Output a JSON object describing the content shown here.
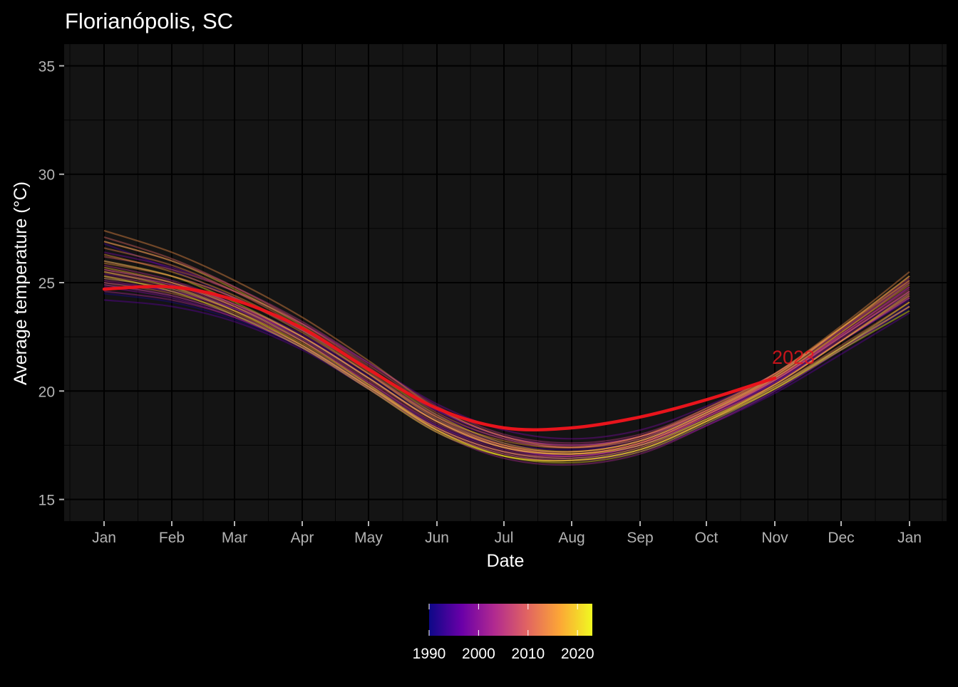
{
  "chart_data": {
    "type": "line",
    "title": "Florianópolis, SC",
    "xlabel": "Date",
    "ylabel": "Average temperature (°C)",
    "x_tick_labels": [
      "Jan",
      "Feb",
      "Mar",
      "Apr",
      "May",
      "Jun",
      "Jul",
      "Aug",
      "Sep",
      "Oct",
      "Nov",
      "Dec",
      "Jan"
    ],
    "y_ticks": [
      15,
      20,
      25,
      30,
      35
    ],
    "ylim": [
      14,
      36
    ],
    "grid": true,
    "legend": {
      "type": "colorbar",
      "placement": "bottom",
      "ticks": [
        1990,
        2000,
        2010,
        2020
      ],
      "range": [
        1990,
        2023
      ],
      "palette": [
        "#0d0887",
        "#6a00a8",
        "#b12a90",
        "#e16462",
        "#fca636",
        "#f0f921"
      ]
    },
    "highlight": {
      "name": "2023",
      "label": "2023",
      "color": "#e8141c",
      "x": [
        "Jan",
        "Feb",
        "Mar",
        "Apr",
        "May",
        "Jun",
        "Jul",
        "Aug",
        "Sep",
        "Oct",
        "Nov"
      ],
      "values": [
        24.7,
        24.8,
        24.2,
        22.9,
        21.0,
        19.2,
        18.3,
        18.3,
        18.8,
        19.6,
        20.6
      ]
    },
    "x_monthly": [
      "Jan",
      "Feb",
      "Mar",
      "Apr",
      "May",
      "Jun",
      "Jul",
      "Aug",
      "Sep",
      "Oct",
      "Nov",
      "Dec",
      "Jan"
    ],
    "series": [
      {
        "year": 1991,
        "values": [
          24.5,
          24.1,
          23.3,
          22.0,
          20.2,
          18.3,
          17.2,
          16.9,
          17.3,
          18.5,
          20.0,
          21.9,
          23.8
        ]
      },
      {
        "year": 1992,
        "values": [
          25.2,
          24.7,
          23.8,
          22.4,
          20.6,
          18.7,
          17.5,
          17.2,
          17.7,
          18.9,
          20.4,
          22.3,
          24.3
        ]
      },
      {
        "year": 1993,
        "values": [
          24.9,
          24.4,
          23.5,
          22.1,
          20.3,
          18.4,
          17.4,
          17.0,
          17.5,
          18.7,
          20.2,
          22.0,
          24.0
        ]
      },
      {
        "year": 1994,
        "values": [
          26.8,
          25.6,
          24.3,
          22.8,
          21.0,
          19.1,
          17.9,
          17.5,
          17.9,
          19.0,
          20.5,
          22.5,
          24.6
        ]
      },
      {
        "year": 1995,
        "values": [
          25.0,
          24.6,
          23.8,
          22.5,
          20.7,
          18.8,
          17.6,
          17.3,
          17.7,
          18.9,
          20.4,
          22.3,
          24.2
        ]
      },
      {
        "year": 1996,
        "values": [
          24.2,
          23.9,
          23.2,
          21.9,
          20.1,
          18.2,
          17.1,
          16.8,
          17.2,
          18.4,
          19.9,
          21.7,
          23.6
        ]
      },
      {
        "year": 1997,
        "values": [
          25.6,
          25.0,
          24.0,
          22.6,
          20.8,
          18.9,
          17.8,
          17.4,
          17.8,
          19.0,
          20.5,
          22.5,
          24.5
        ]
      },
      {
        "year": 1998,
        "values": [
          26.4,
          25.7,
          24.6,
          23.1,
          21.3,
          19.4,
          18.2,
          17.8,
          18.2,
          19.3,
          20.8,
          22.8,
          25.0
        ]
      },
      {
        "year": 1999,
        "values": [
          24.8,
          24.3,
          23.4,
          22.0,
          20.2,
          18.3,
          17.2,
          16.9,
          17.4,
          18.6,
          20.1,
          22.0,
          23.9
        ]
      },
      {
        "year": 2000,
        "values": [
          25.4,
          24.9,
          23.9,
          22.5,
          20.6,
          18.6,
          17.4,
          17.0,
          17.5,
          18.8,
          20.3,
          22.3,
          24.3
        ]
      },
      {
        "year": 2001,
        "values": [
          26.0,
          25.3,
          24.3,
          22.8,
          21.0,
          19.1,
          17.9,
          17.5,
          17.9,
          19.1,
          20.6,
          22.6,
          24.8
        ]
      },
      {
        "year": 2002,
        "values": [
          25.1,
          24.6,
          23.7,
          22.3,
          20.4,
          18.4,
          17.3,
          17.0,
          17.5,
          18.8,
          20.4,
          22.4,
          24.4
        ]
      },
      {
        "year": 2003,
        "values": [
          24.6,
          24.2,
          23.4,
          22.0,
          20.1,
          18.1,
          16.9,
          16.6,
          17.1,
          18.4,
          20.0,
          21.9,
          23.9
        ]
      },
      {
        "year": 2004,
        "values": [
          25.8,
          25.1,
          24.0,
          22.5,
          20.6,
          18.6,
          17.4,
          17.1,
          17.6,
          18.9,
          20.5,
          22.6,
          24.8
        ]
      },
      {
        "year": 2005,
        "values": [
          26.9,
          26.0,
          24.8,
          23.2,
          21.3,
          19.3,
          18.0,
          17.6,
          18.0,
          19.2,
          20.8,
          22.9,
          25.2
        ]
      },
      {
        "year": 2006,
        "values": [
          25.3,
          24.8,
          23.8,
          22.3,
          20.4,
          18.5,
          17.4,
          17.1,
          17.6,
          18.9,
          20.5,
          22.5,
          24.6
        ]
      },
      {
        "year": 2007,
        "values": [
          25.5,
          24.9,
          23.9,
          22.4,
          20.5,
          18.6,
          17.5,
          17.2,
          17.7,
          19.0,
          20.6,
          22.6,
          24.7
        ]
      },
      {
        "year": 2008,
        "values": [
          24.9,
          24.4,
          23.5,
          22.1,
          20.2,
          18.3,
          17.2,
          17.0,
          17.5,
          18.8,
          20.3,
          22.3,
          24.3
        ]
      },
      {
        "year": 2009,
        "values": [
          26.2,
          25.6,
          24.6,
          23.1,
          21.2,
          19.2,
          17.9,
          17.5,
          17.9,
          19.1,
          20.7,
          22.8,
          25.1
        ]
      },
      {
        "year": 2010,
        "values": [
          27.1,
          26.1,
          24.8,
          23.1,
          21.1,
          19.0,
          17.8,
          17.4,
          17.9,
          19.1,
          20.7,
          22.9,
          25.3
        ]
      },
      {
        "year": 2011,
        "values": [
          25.6,
          25.0,
          24.0,
          22.5,
          20.6,
          18.6,
          17.4,
          17.1,
          17.6,
          18.9,
          20.5,
          22.5,
          24.6
        ]
      },
      {
        "year": 2012,
        "values": [
          25.0,
          24.5,
          23.6,
          22.1,
          20.2,
          18.2,
          17.1,
          16.8,
          17.3,
          18.6,
          20.2,
          22.1,
          24.1
        ]
      },
      {
        "year": 2013,
        "values": [
          26.6,
          25.8,
          24.6,
          22.9,
          20.9,
          18.8,
          17.5,
          17.1,
          17.6,
          18.9,
          20.6,
          22.7,
          25.0
        ]
      },
      {
        "year": 2014,
        "values": [
          27.4,
          26.4,
          25.1,
          23.4,
          21.4,
          19.2,
          17.9,
          17.4,
          17.8,
          19.1,
          20.8,
          23.0,
          25.5
        ]
      },
      {
        "year": 2015,
        "values": [
          25.9,
          25.3,
          24.3,
          22.7,
          20.8,
          18.8,
          17.7,
          17.4,
          17.9,
          19.2,
          20.8,
          22.9,
          25.1
        ]
      },
      {
        "year": 2016,
        "values": [
          26.3,
          25.5,
          24.4,
          22.8,
          20.8,
          18.7,
          17.5,
          17.2,
          17.7,
          19.0,
          20.6,
          22.7,
          24.9
        ]
      },
      {
        "year": 2017,
        "values": [
          25.2,
          24.7,
          23.7,
          22.2,
          20.3,
          18.3,
          17.2,
          16.9,
          17.4,
          18.7,
          20.3,
          22.3,
          24.4
        ]
      },
      {
        "year": 2018,
        "values": [
          25.7,
          25.0,
          23.9,
          22.3,
          20.3,
          18.2,
          17.0,
          16.8,
          17.3,
          18.6,
          20.3,
          22.3,
          24.5
        ]
      },
      {
        "year": 2019,
        "values": [
          26.9,
          26.0,
          24.7,
          23.0,
          21.0,
          18.9,
          17.6,
          17.2,
          17.7,
          19.0,
          20.7,
          22.9,
          25.3
        ]
      },
      {
        "year": 2020,
        "values": [
          25.5,
          24.8,
          23.7,
          22.1,
          20.2,
          18.2,
          17.0,
          16.7,
          17.2,
          18.5,
          20.1,
          22.0,
          24.1
        ]
      },
      {
        "year": 2021,
        "values": [
          26.0,
          25.3,
          24.1,
          22.5,
          20.6,
          18.6,
          17.4,
          17.1,
          17.5,
          18.7,
          20.2,
          22.0,
          23.9
        ]
      },
      {
        "year": 2022,
        "values": [
          25.3,
          24.6,
          23.5,
          22.0,
          20.1,
          18.1,
          17.0,
          16.8,
          17.3,
          18.6,
          20.1,
          21.9,
          23.7
        ]
      }
    ]
  }
}
